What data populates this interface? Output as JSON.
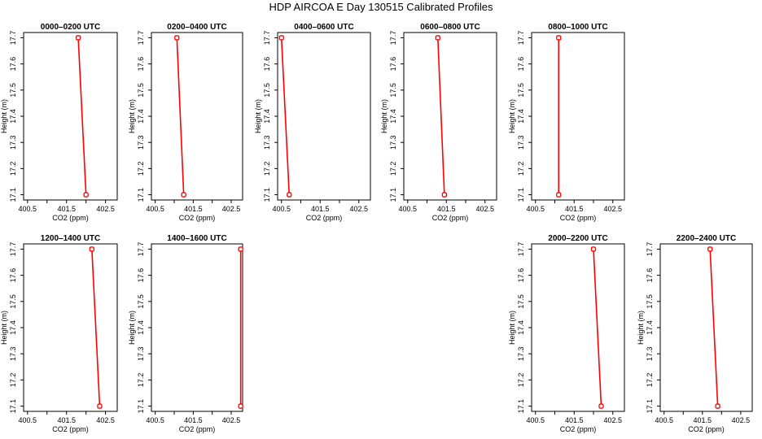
{
  "page_title": "HDP AIRCOA E  Day 130515  Calibrated Profiles",
  "chart_data": [
    {
      "type": "line",
      "title": "0000–0200 UTC",
      "xlabel": "CO2 (ppm)",
      "ylabel": "Height (m)",
      "xlim": [
        400.4,
        402.8
      ],
      "ylim": [
        17.08,
        17.72
      ],
      "xticks": [
        "400.5",
        "401.5",
        "402.5"
      ],
      "xtick_values": [
        400.5,
        401.5,
        402.5
      ],
      "yticks": [
        "17.1",
        "17.2",
        "17.3",
        "17.4",
        "17.5",
        "17.6",
        "17.7"
      ],
      "ytick_values": [
        17.1,
        17.2,
        17.3,
        17.4,
        17.5,
        17.6,
        17.7
      ],
      "points": [
        {
          "x": 401.8,
          "y": 17.7
        },
        {
          "x": 402.0,
          "y": 17.1
        }
      ],
      "color": "#ff0000"
    },
    {
      "type": "line",
      "title": "0200–0400 UTC",
      "xlabel": "CO2 (ppm)",
      "ylabel": "Height (m)",
      "xlim": [
        400.4,
        402.8
      ],
      "ylim": [
        17.08,
        17.72
      ],
      "xticks": [
        "400.5",
        "401.5",
        "402.5"
      ],
      "xtick_values": [
        400.5,
        401.5,
        402.5
      ],
      "yticks": [
        "17.1",
        "17.2",
        "17.3",
        "17.4",
        "17.5",
        "17.6",
        "17.7"
      ],
      "ytick_values": [
        17.1,
        17.2,
        17.3,
        17.4,
        17.5,
        17.6,
        17.7
      ],
      "points": [
        {
          "x": 401.07,
          "y": 17.7
        },
        {
          "x": 401.25,
          "y": 17.1
        }
      ],
      "color": "#ff0000"
    },
    {
      "type": "line",
      "title": "0400–0600 UTC",
      "xlabel": "CO2 (ppm)",
      "ylabel": "Height (m)",
      "xlim": [
        400.4,
        402.8
      ],
      "ylim": [
        17.08,
        17.72
      ],
      "xticks": [
        "400.5",
        "401.5",
        "402.5"
      ],
      "xtick_values": [
        400.5,
        401.5,
        402.5
      ],
      "yticks": [
        "17.1",
        "17.2",
        "17.3",
        "17.4",
        "17.5",
        "17.6",
        "17.7"
      ],
      "ytick_values": [
        17.1,
        17.2,
        17.3,
        17.4,
        17.5,
        17.6,
        17.7
      ],
      "points": [
        {
          "x": 400.5,
          "y": 17.7
        },
        {
          "x": 400.7,
          "y": 17.1
        }
      ],
      "color": "#ff0000"
    },
    {
      "type": "line",
      "title": "0600–0800 UTC",
      "xlabel": "CO2 (ppm)",
      "ylabel": "Height (m)",
      "xlim": [
        400.4,
        402.8
      ],
      "ylim": [
        17.08,
        17.72
      ],
      "xticks": [
        "400.5",
        "401.5",
        "402.5"
      ],
      "xtick_values": [
        400.5,
        401.5,
        402.5
      ],
      "yticks": [
        "17.1",
        "17.2",
        "17.3",
        "17.4",
        "17.5",
        "17.6",
        "17.7"
      ],
      "ytick_values": [
        17.1,
        17.2,
        17.3,
        17.4,
        17.5,
        17.6,
        17.7
      ],
      "points": [
        {
          "x": 401.28,
          "y": 17.7
        },
        {
          "x": 401.45,
          "y": 17.1
        }
      ],
      "color": "#ff0000"
    },
    {
      "type": "line",
      "title": "0800–1000 UTC",
      "xlabel": "CO2 (ppm)",
      "ylabel": "Height (m)",
      "xlim": [
        400.4,
        402.8
      ],
      "ylim": [
        17.08,
        17.72
      ],
      "xticks": [
        "400.5",
        "401.5",
        "402.5"
      ],
      "xtick_values": [
        400.5,
        401.5,
        402.5
      ],
      "yticks": [
        "17.1",
        "17.2",
        "17.3",
        "17.4",
        "17.5",
        "17.6",
        "17.7"
      ],
      "ytick_values": [
        17.1,
        17.2,
        17.3,
        17.4,
        17.5,
        17.6,
        17.7
      ],
      "points": [
        {
          "x": 401.1,
          "y": 17.7
        },
        {
          "x": 401.1,
          "y": 17.1
        }
      ],
      "color": "#ff0000"
    },
    {
      "type": "line",
      "title": "1200–1400 UTC",
      "xlabel": "CO2 (ppm)",
      "ylabel": "Height (m)",
      "xlim": [
        400.4,
        402.8
      ],
      "ylim": [
        17.08,
        17.72
      ],
      "xticks": [
        "400.5",
        "401.5",
        "402.5"
      ],
      "xtick_values": [
        400.5,
        401.5,
        402.5
      ],
      "yticks": [
        "17.1",
        "17.2",
        "17.3",
        "17.4",
        "17.5",
        "17.6",
        "17.7"
      ],
      "ytick_values": [
        17.1,
        17.2,
        17.3,
        17.4,
        17.5,
        17.6,
        17.7
      ],
      "points": [
        {
          "x": 402.15,
          "y": 17.7
        },
        {
          "x": 402.35,
          "y": 17.1
        }
      ],
      "color": "#ff0000"
    },
    {
      "type": "line",
      "title": "1400–1600 UTC",
      "xlabel": "CO2 (ppm)",
      "ylabel": "Height (m)",
      "xlim": [
        400.4,
        402.8
      ],
      "ylim": [
        17.08,
        17.72
      ],
      "xticks": [
        "400.5",
        "401.5",
        "402.5"
      ],
      "xtick_values": [
        400.5,
        401.5,
        402.5
      ],
      "yticks": [
        "17.1",
        "17.2",
        "17.3",
        "17.4",
        "17.5",
        "17.6",
        "17.7"
      ],
      "ytick_values": [
        17.1,
        17.2,
        17.3,
        17.4,
        17.5,
        17.6,
        17.7
      ],
      "points": [
        {
          "x": 402.75,
          "y": 17.7
        },
        {
          "x": 402.75,
          "y": 17.1
        }
      ],
      "color": "#ff0000"
    },
    {
      "type": "line",
      "title": "2000–2200 UTC",
      "xlabel": "CO2 (ppm)",
      "ylabel": "Height (m)",
      "xlim": [
        400.4,
        402.8
      ],
      "ylim": [
        17.08,
        17.72
      ],
      "xticks": [
        "400.5",
        "401.5",
        "402.5"
      ],
      "xtick_values": [
        400.5,
        401.5,
        402.5
      ],
      "yticks": [
        "17.1",
        "17.2",
        "17.3",
        "17.4",
        "17.5",
        "17.6",
        "17.7"
      ],
      "ytick_values": [
        17.1,
        17.2,
        17.3,
        17.4,
        17.5,
        17.6,
        17.7
      ],
      "points": [
        {
          "x": 402.0,
          "y": 17.7
        },
        {
          "x": 402.2,
          "y": 17.1
        }
      ],
      "color": "#ff0000"
    },
    {
      "type": "line",
      "title": "2200–2400 UTC",
      "xlabel": "CO2 (ppm)",
      "ylabel": "Height (m)",
      "xlim": [
        400.4,
        402.8
      ],
      "ylim": [
        17.08,
        17.72
      ],
      "xticks": [
        "400.5",
        "401.5",
        "402.5"
      ],
      "xtick_values": [
        400.5,
        401.5,
        402.5
      ],
      "yticks": [
        "17.1",
        "17.2",
        "17.3",
        "17.4",
        "17.5",
        "17.6",
        "17.7"
      ],
      "ytick_values": [
        17.1,
        17.2,
        17.3,
        17.4,
        17.5,
        17.6,
        17.7
      ],
      "points": [
        {
          "x": 401.7,
          "y": 17.7
        },
        {
          "x": 401.9,
          "y": 17.1
        }
      ],
      "color": "#ff0000"
    }
  ]
}
